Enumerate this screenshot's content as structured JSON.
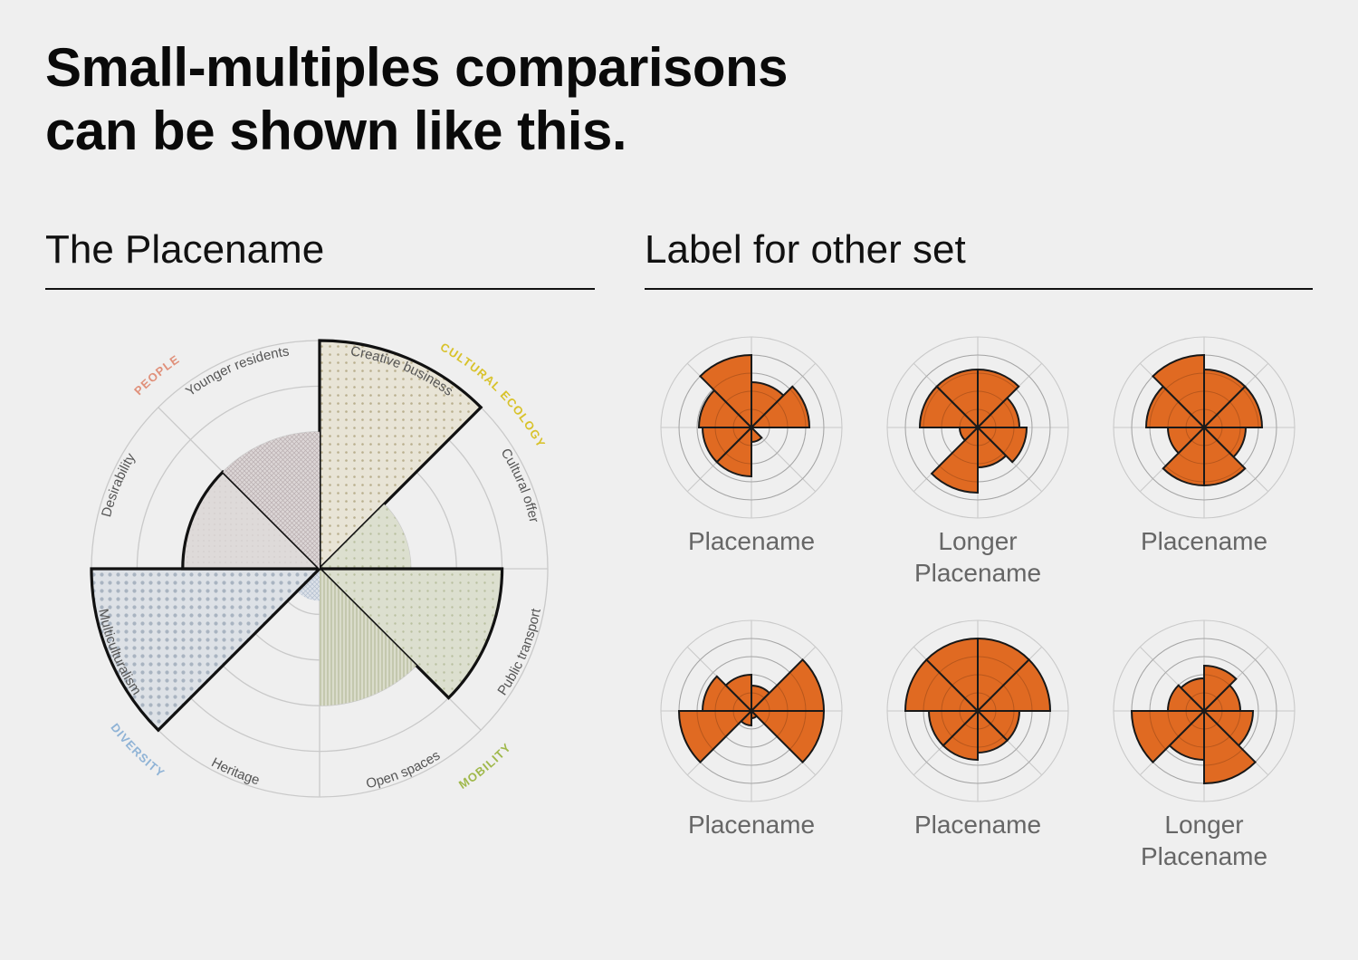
{
  "headline": {
    "line1": "Small-multiples comparisons",
    "line2": "can be shown like this."
  },
  "sections": {
    "left_title": "The Placename",
    "right_title": "Label for other set"
  },
  "colors": {
    "background": "#efefef",
    "people": "#e0907a",
    "cultural_ecology": "#d8c22a",
    "mobility": "#9fb84a",
    "diversity": "#8fb3d6",
    "small_multiple_fill": "#e06a22",
    "grid": "#c8c8c8"
  },
  "chart_data": [
    {
      "type": "polar-area",
      "title": "The Placename",
      "scale": "0-5 rings",
      "grid": true,
      "groups": [
        {
          "label": "PEOPLE",
          "color": "#e0907a"
        },
        {
          "label": "CULTURAL ECOLOGY",
          "color": "#d8c22a"
        },
        {
          "label": "MOBILITY",
          "color": "#9fb84a"
        },
        {
          "label": "DIVERSITY",
          "color": "#8fb3d6"
        }
      ],
      "categories": [
        "Creative business",
        "Cultural offer",
        "Public transport",
        "Open spaces",
        "Heritage",
        "Multiculturalism",
        "Desirability",
        "Younger residents"
      ],
      "values": [
        5,
        2,
        4,
        3,
        0.7,
        5,
        3,
        3
      ]
    },
    {
      "type": "polar-area-small-multiples",
      "title": "Label for other set",
      "scale": "0-5 rings",
      "grid": true,
      "panels": [
        {
          "label_lines": [
            "Placename"
          ],
          "values": [
            2.5,
            3.2,
            0,
            0.8,
            2.7,
            2.7,
            2.9,
            4.0
          ]
        },
        {
          "label_lines": [
            "Longer",
            "Placename"
          ],
          "values": [
            3.2,
            2.3,
            2.7,
            2.2,
            3.6,
            1.0,
            3.2,
            3.2
          ]
        },
        {
          "label_lines": [
            "Placename"
          ],
          "values": [
            3.2,
            3.2,
            2.3,
            3.2,
            3.2,
            2.0,
            3.2,
            4.0
          ]
        },
        {
          "label_lines": [
            "Placename"
          ],
          "values": [
            1.4,
            4.0,
            4.0,
            0.4,
            0.8,
            4.0,
            2.7,
            2.0
          ]
        },
        {
          "label_lines": [
            "Placename"
          ],
          "values": [
            4.0,
            4.0,
            2.3,
            2.3,
            2.7,
            2.7,
            4.0,
            4.0
          ]
        },
        {
          "label_lines": [
            "Longer",
            "Placename"
          ],
          "values": [
            2.5,
            2.0,
            2.7,
            4.0,
            2.7,
            4.0,
            2.0,
            1.8
          ]
        }
      ]
    }
  ]
}
